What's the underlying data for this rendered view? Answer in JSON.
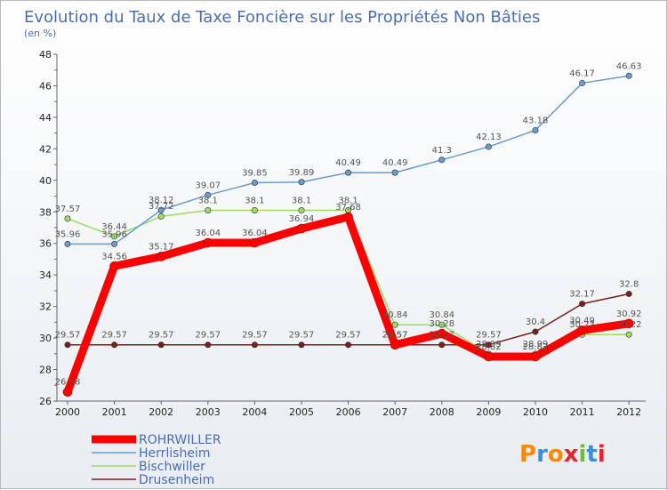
{
  "chart_data": {
    "type": "line",
    "title": "Evolution du Taux de Taxe Foncière sur les Propriétés Non Bâties",
    "subtitle": "(en %)",
    "xlabel": "",
    "ylabel": "",
    "x": [
      "2000",
      "2001",
      "2002",
      "2003",
      "2004",
      "2005",
      "2006",
      "2007",
      "2008",
      "2009",
      "2010",
      "2011",
      "2012"
    ],
    "yticks": [
      "26",
      "28",
      "30",
      "32",
      "34",
      "36",
      "38",
      "40",
      "42",
      "44",
      "46",
      "48"
    ],
    "ylim": [
      26,
      48
    ],
    "grid": false,
    "legend_position": "bottom-left",
    "series": [
      {
        "name": "ROHRWILLER",
        "color": "#ff0000",
        "values": [
          26.58,
          34.56,
          35.17,
          36.04,
          36.04,
          36.94,
          37.68,
          29.57,
          30.28,
          28.82,
          28.82,
          30.49,
          30.92
        ],
        "labels": [
          "26.58",
          "34.56",
          "35.17",
          "36.04",
          "36.04",
          "36.94",
          "37.68",
          "29.57",
          "30.28",
          "28.82",
          "28.82",
          "30.49",
          "30.92"
        ]
      },
      {
        "name": "Herrlisheim",
        "color": "#6b9bcf",
        "values": [
          35.96,
          35.96,
          38.12,
          39.07,
          39.85,
          39.89,
          40.49,
          40.49,
          41.3,
          42.13,
          43.18,
          46.17,
          46.63
        ],
        "labels": [
          "35.96",
          "35.96",
          "38.12",
          "39.07",
          "39.85",
          "39.89",
          "40.49",
          "40.49",
          "41.3",
          "42.13",
          "43.18",
          "46.17",
          "46.63"
        ]
      },
      {
        "name": "Bischwiller",
        "color": "#99dd66",
        "values": [
          37.57,
          36.44,
          37.72,
          38.1,
          38.1,
          38.1,
          38.1,
          30.84,
          30.84,
          28.99,
          28.99,
          30.22,
          30.22
        ],
        "labels": [
          "37.57",
          "36.44",
          "37.72",
          "38.1",
          "38.1",
          "38.1",
          "38.1",
          "30.84",
          "30.84",
          "28.99",
          "28.99",
          "30.22",
          "30.22"
        ]
      },
      {
        "name": "Drusenheim",
        "color": "#7a1f1f",
        "values": [
          29.57,
          29.57,
          29.57,
          29.57,
          29.57,
          29.57,
          29.57,
          29.57,
          29.57,
          29.57,
          30.4,
          32.17,
          32.8
        ],
        "labels": [
          "29.57",
          "29.57",
          "29.57",
          "29.57",
          "29.57",
          "29.57",
          "29.57",
          "29.57",
          "29.57",
          "29.57",
          "30.4",
          "32.17",
          "32.8"
        ]
      }
    ]
  },
  "branding": {
    "logo_text": "Proxiti",
    "logo_colors": [
      "#ff8a00",
      "#3a8fd6",
      "#ff8a00",
      "#e0262a",
      "#6bbf3a",
      "#3a8fd6",
      "#e0262a"
    ]
  }
}
